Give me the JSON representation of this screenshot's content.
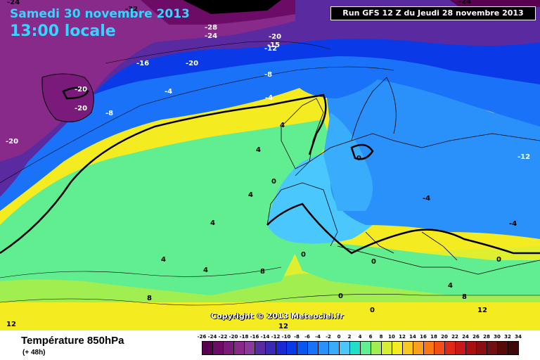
{
  "header": {
    "date": "Samedi 30 novembre 2013",
    "time": "13:00 locale",
    "run": "Run GFS 12 Z du Jeudi 28 novembre 2013"
  },
  "footer": {
    "parameter": "Température 850hPa",
    "lead_time": "(+ 48h)",
    "copyright": "Copyright © 2013 Meteociel.fr"
  },
  "legend": {
    "labels": [
      "-26",
      "-24",
      "-22",
      "-20",
      "-18",
      "-16",
      "-14",
      "-12",
      "-10",
      "-8",
      "-6",
      "-4",
      "-2",
      "0",
      "2",
      "4",
      "6",
      "8",
      "10",
      "12",
      "14",
      "16",
      "18",
      "20",
      "22",
      "24",
      "26",
      "28",
      "30",
      "32",
      "34"
    ],
    "colors": [
      "#5a0050",
      "#6c0c66",
      "#7a1a7a",
      "#882a8a",
      "#8a3a9a",
      "#5a2aa0",
      "#3a2ab0",
      "#1a2ad0",
      "#0a3ae8",
      "#0a56f0",
      "#1a72f8",
      "#2a90fa",
      "#3aacfc",
      "#4ac8fe",
      "#22e0c8",
      "#60ee90",
      "#a0ee50",
      "#d8ee30",
      "#f4ec20",
      "#f8c820",
      "#f8a020",
      "#f87818",
      "#f05018",
      "#e02818",
      "#c81818",
      "#a81010",
      "#881010",
      "#701010",
      "#580a0a",
      "#400808"
    ]
  },
  "map_labels": [
    {
      "text": "-24"
    },
    {
      "text": "-32"
    },
    {
      "text": "-28"
    },
    {
      "text": "-28"
    },
    {
      "text": "-24"
    },
    {
      "text": "-20"
    },
    {
      "text": "-15"
    },
    {
      "text": "-12"
    },
    {
      "text": "-16"
    },
    {
      "text": "-20"
    },
    {
      "text": "-8"
    },
    {
      "text": "-20"
    },
    {
      "text": "-4"
    },
    {
      "text": "-20"
    },
    {
      "text": "-4"
    },
    {
      "text": "-8"
    },
    {
      "text": "-20"
    },
    {
      "text": "4"
    },
    {
      "text": "4"
    },
    {
      "text": "0"
    },
    {
      "text": "-12"
    },
    {
      "text": "4"
    },
    {
      "text": "0"
    },
    {
      "text": "-4"
    },
    {
      "text": "4"
    },
    {
      "text": "-4"
    },
    {
      "text": "4"
    },
    {
      "text": "0"
    },
    {
      "text": "4"
    },
    {
      "text": "8"
    },
    {
      "text": "0"
    },
    {
      "text": "4"
    },
    {
      "text": "8"
    },
    {
      "text": "0"
    },
    {
      "text": "0"
    },
    {
      "text": "8"
    },
    {
      "text": "12"
    },
    {
      "text": "12"
    },
    {
      "text": "12"
    },
    {
      "text": "0"
    },
    {
      "text": "-24"
    }
  ]
}
